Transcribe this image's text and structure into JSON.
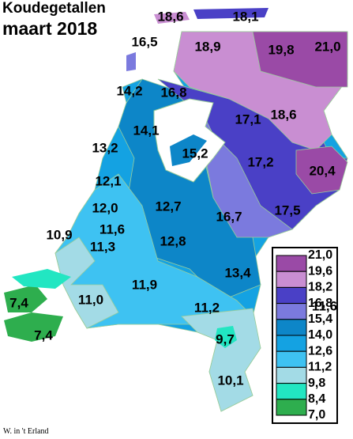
{
  "title": "Koudegetallen",
  "subtitle": "maart 2018",
  "labels": [
    "18,6",
    "18,1",
    "16,5",
    "18,9",
    "19,8",
    "21,0",
    "14,2",
    "16,8",
    "17,1",
    "18,6",
    "14,1",
    "13,2",
    "15,2",
    "17,2",
    "20,4",
    "12,1",
    "12,0",
    "12,7",
    "16,7",
    "17,5",
    "10,9",
    "11,6",
    "11,3",
    "12,8",
    "13,4",
    "11,9",
    "7,4",
    "11,0",
    "11,2",
    "11,6",
    "7,4",
    "9,7",
    "10,1"
  ],
  "legend": {
    "labels": [
      "21,0",
      "19,6",
      "18,2",
      "16,8",
      "15,4",
      "14,0",
      "12,6",
      "11,2",
      "9,8",
      "8,4",
      "7,0"
    ],
    "colors": [
      "#9a4aa6",
      "#c98ed2",
      "#4a40c6",
      "#7b7ade",
      "#0d86c8",
      "#14a2e2",
      "#3ec2f2",
      "#a3dbe6",
      "#22e6c2",
      "#2eae4e"
    ]
  },
  "credit": "W. in 't Erland"
}
